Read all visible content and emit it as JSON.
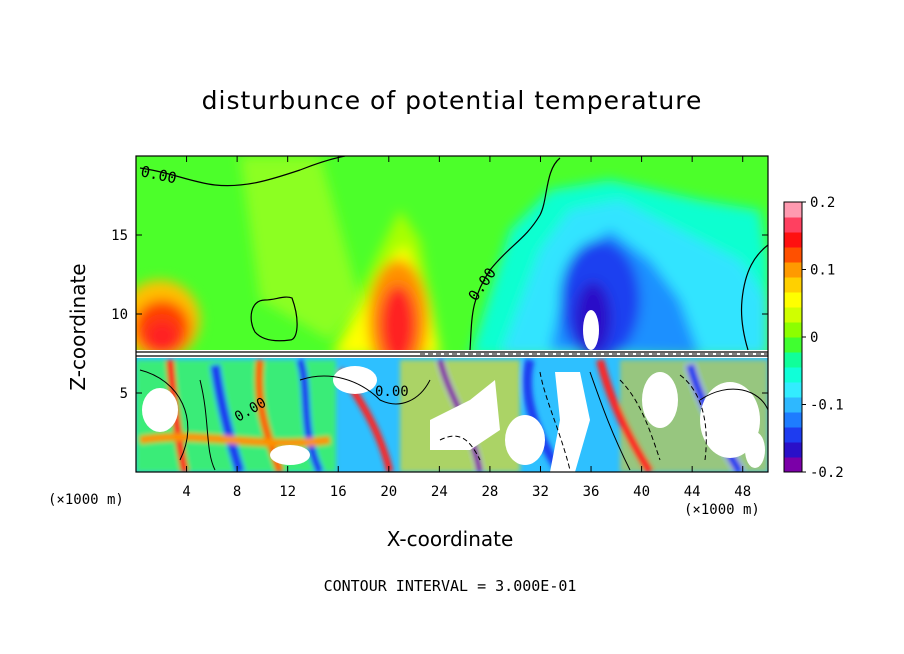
{
  "chart_data": {
    "type": "heatmap",
    "title": "disturbunce of potential temperature",
    "xlabel": "X-coordinate",
    "ylabel": "Z-coordinate",
    "x_unit": "(×1000 m)",
    "xlim": [
      0,
      50
    ],
    "ylim": [
      0,
      20
    ],
    "x_ticks": [
      "4",
      "8",
      "12",
      "16",
      "20",
      "24",
      "28",
      "32",
      "36",
      "40",
      "44",
      "48"
    ],
    "y_ticks": [
      "5",
      "10",
      "15"
    ],
    "colorbar": {
      "range": [
        -0.2,
        0.2
      ],
      "tick_labels": [
        "0.2",
        "0.1",
        "0",
        "-0.1",
        "-0.2"
      ],
      "colors": [
        "#7b00a8",
        "#2a10c8",
        "#1e3cf0",
        "#1e7cff",
        "#2eb8ff",
        "#33ecff",
        "#10ffd8",
        "#10ff9a",
        "#40ff30",
        "#8cff00",
        "#d0ff00",
        "#ffff00",
        "#ffd000",
        "#ff9a00",
        "#ff5000",
        "#ff1010",
        "#ff4060",
        "#ff9ab0"
      ]
    },
    "contour_labels": [
      "0.00",
      "0.00",
      "0.00",
      "0.00"
    ],
    "footer": "CONTOUR INTERVAL = 3.000E-01"
  }
}
